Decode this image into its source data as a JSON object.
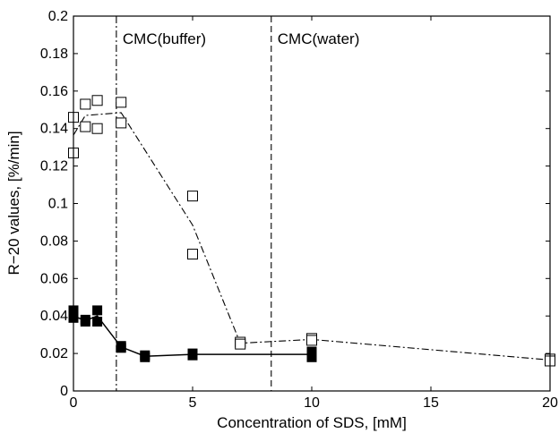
{
  "chart_data": {
    "type": "scatter",
    "title": "",
    "xlabel": "Concentration of SDS, [mM]",
    "ylabel": "R−20 values, [%/min]",
    "xlim": [
      0,
      20
    ],
    "ylim": [
      0,
      0.2
    ],
    "x_ticks": [
      0,
      5,
      10,
      15,
      20
    ],
    "x_tick_labels": [
      "0",
      "5",
      "10",
      "15",
      "20"
    ],
    "y_ticks": [
      0,
      0.02,
      0.04,
      0.06,
      0.08,
      0.1,
      0.12,
      0.14,
      0.16,
      0.18,
      0.2
    ],
    "y_tick_labels": [
      "0",
      "0.02",
      "0.04",
      "0.06",
      "0.08",
      "0.1",
      "0.12",
      "0.14",
      "0.16",
      "0.18",
      "0.2"
    ],
    "grid": false,
    "legend": "none",
    "series": [
      {
        "marker": "open-square",
        "points": [
          [
            0,
            0.127
          ],
          [
            0,
            0.146
          ],
          [
            0.5,
            0.153
          ],
          [
            0.5,
            0.141
          ],
          [
            1,
            0.155
          ],
          [
            1,
            0.14
          ],
          [
            2,
            0.154
          ],
          [
            2,
            0.143
          ],
          [
            5,
            0.104
          ],
          [
            5,
            0.073
          ],
          [
            7,
            0.026
          ],
          [
            7,
            0.025
          ],
          [
            10,
            0.028
          ],
          [
            10,
            0.027
          ],
          [
            20,
            0.017
          ],
          [
            20,
            0.016
          ]
        ],
        "fit_line_style": "dash-dot",
        "fit_line": [
          [
            0,
            0.1365
          ],
          [
            0.5,
            0.147
          ],
          [
            1,
            0.1475
          ],
          [
            2,
            0.1485
          ],
          [
            5,
            0.0885
          ],
          [
            7,
            0.0255
          ],
          [
            10,
            0.0275
          ],
          [
            20,
            0.0165
          ]
        ]
      },
      {
        "marker": "filled-square",
        "points": [
          [
            0,
            0.043
          ],
          [
            0,
            0.039
          ],
          [
            0.5,
            0.038
          ],
          [
            0.5,
            0.037
          ],
          [
            1,
            0.043
          ],
          [
            1,
            0.037
          ],
          [
            2,
            0.024
          ],
          [
            2,
            0.023
          ],
          [
            3,
            0.019
          ],
          [
            3,
            0.018
          ],
          [
            5,
            0.019
          ],
          [
            5,
            0.02
          ],
          [
            10,
            0.021
          ],
          [
            10,
            0.018
          ]
        ],
        "fit_line_style": "solid",
        "fit_line": [
          [
            0,
            0.04
          ],
          [
            0.5,
            0.0375
          ],
          [
            1,
            0.04
          ],
          [
            2,
            0.0235
          ],
          [
            3,
            0.0185
          ],
          [
            5,
            0.0195
          ],
          [
            10,
            0.0195
          ]
        ]
      }
    ],
    "vertical_lines": [
      {
        "x": 1.8,
        "style": "dash-dot",
        "label": "CMC(buffer)"
      },
      {
        "x": 8.3,
        "style": "dashed",
        "label": "CMC(water)"
      }
    ]
  }
}
